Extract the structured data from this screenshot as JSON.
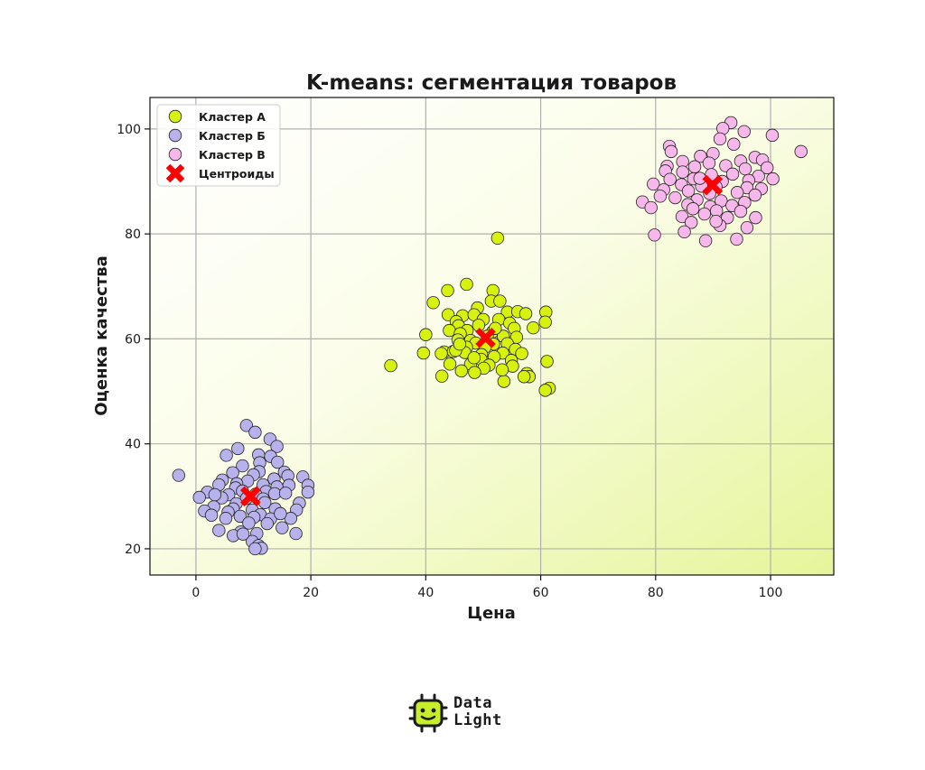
{
  "chart_data": {
    "type": "scatter",
    "title": "K-means: сегментация товаров",
    "xlabel": "Цена",
    "ylabel": "Оценка качества",
    "xlim": [
      -8,
      111
    ],
    "ylim": [
      15,
      106
    ],
    "xticks": [
      0,
      20,
      40,
      60,
      80,
      100
    ],
    "yticks": [
      20,
      40,
      60,
      80,
      100
    ],
    "grid": true,
    "legend_position": "top-left",
    "colors": {
      "cluster_a": "#d8f20f",
      "cluster_b": "#b7b1ec",
      "cluster_v": "#f8b7ea",
      "centroids": "#ff0000",
      "marker_edge": "#222222",
      "background_start": "#ffffff",
      "background_end": "#e6f59a"
    },
    "series": [
      {
        "name": "Кластер А",
        "color": "#d8f20f",
        "points": [
          [
            52.5,
            79.2
          ],
          [
            47.1,
            70.4
          ],
          [
            43.8,
            69.2
          ],
          [
            51.7,
            69.2
          ],
          [
            51.4,
            67.2
          ],
          [
            52.9,
            67.2
          ],
          [
            41.3,
            66.9
          ],
          [
            49.0,
            65.9
          ],
          [
            54.2,
            65.1
          ],
          [
            56.0,
            65.2
          ],
          [
            60.9,
            65.1
          ],
          [
            46.4,
            64.4
          ],
          [
            48.4,
            64.6
          ],
          [
            57.4,
            64.8
          ],
          [
            43.9,
            64.6
          ],
          [
            50.0,
            63.7
          ],
          [
            52.7,
            63.7
          ],
          [
            45.3,
            63.3
          ],
          [
            54.6,
            63.0
          ],
          [
            60.8,
            63.2
          ],
          [
            45.7,
            62.5
          ],
          [
            55.4,
            62.0
          ],
          [
            58.7,
            62.1
          ],
          [
            47.2,
            61.6
          ],
          [
            51.6,
            61.3
          ],
          [
            44.1,
            61.6
          ],
          [
            46.0,
            61.0
          ],
          [
            50.7,
            60.5
          ],
          [
            53.5,
            60.5
          ],
          [
            55.8,
            60.3
          ],
          [
            47.8,
            59.7
          ],
          [
            40.0,
            60.8
          ],
          [
            45.6,
            59.8
          ],
          [
            48.7,
            59.2
          ],
          [
            54.2,
            59.1
          ],
          [
            51.8,
            59.0
          ],
          [
            47.1,
            58.4
          ],
          [
            50.3,
            58.4
          ],
          [
            55.6,
            58.0
          ],
          [
            43.2,
            57.5
          ],
          [
            44.8,
            57.6
          ],
          [
            46.8,
            57.4
          ],
          [
            53.4,
            57.3
          ],
          [
            49.7,
            57.0
          ],
          [
            56.7,
            57.2
          ],
          [
            39.6,
            57.3
          ],
          [
            42.7,
            57.2
          ],
          [
            51.9,
            56.6
          ],
          [
            49.6,
            56.1
          ],
          [
            54.9,
            55.9
          ],
          [
            44.2,
            55.2
          ],
          [
            47.8,
            55.2
          ],
          [
            51.0,
            55.0
          ],
          [
            50.1,
            54.4
          ],
          [
            55.1,
            54.8
          ],
          [
            33.9,
            54.9
          ],
          [
            46.2,
            53.9
          ],
          [
            48.5,
            53.6
          ],
          [
            57.6,
            53.4
          ],
          [
            58.0,
            52.8
          ],
          [
            42.8,
            52.9
          ],
          [
            53.6,
            51.9
          ],
          [
            61.5,
            50.6
          ],
          [
            60.8,
            50.2
          ],
          [
            61.1,
            55.7
          ],
          [
            57.1,
            52.8
          ],
          [
            45.2,
            57.8
          ],
          [
            49.2,
            62.6
          ],
          [
            52.1,
            62.0
          ],
          [
            48.4,
            56.4
          ],
          [
            45.9,
            59.0
          ],
          [
            53.3,
            54.1
          ]
        ]
      },
      {
        "name": "Кластер Б",
        "color": "#b7b1ec",
        "points": [
          [
            8.8,
            43.5
          ],
          [
            10.3,
            42.2
          ],
          [
            12.9,
            40.9
          ],
          [
            14.1,
            39.5
          ],
          [
            7.3,
            39.1
          ],
          [
            5.3,
            37.8
          ],
          [
            10.9,
            37.9
          ],
          [
            13.0,
            37.6
          ],
          [
            11.1,
            36.4
          ],
          [
            14.2,
            36.5
          ],
          [
            8.1,
            35.8
          ],
          [
            11.0,
            34.7
          ],
          [
            15.4,
            34.6
          ],
          [
            6.4,
            34.5
          ],
          [
            10.0,
            34.1
          ],
          [
            16.0,
            33.9
          ],
          [
            18.6,
            33.7
          ],
          [
            -3.0,
            34.0
          ],
          [
            4.6,
            33.1
          ],
          [
            9.0,
            32.9
          ],
          [
            13.6,
            33.3
          ],
          [
            7.1,
            32.4
          ],
          [
            11.7,
            32.2
          ],
          [
            19.5,
            32.1
          ],
          [
            4.0,
            32.2
          ],
          [
            6.9,
            31.6
          ],
          [
            14.1,
            31.8
          ],
          [
            16.2,
            32.1
          ],
          [
            8.1,
            31.0
          ],
          [
            12.2,
            30.9
          ],
          [
            2.0,
            30.8
          ],
          [
            5.7,
            30.3
          ],
          [
            10.4,
            30.4
          ],
          [
            13.7,
            30.5
          ],
          [
            19.5,
            30.8
          ],
          [
            0.6,
            29.8
          ],
          [
            4.5,
            29.7
          ],
          [
            8.8,
            29.6
          ],
          [
            11.7,
            29.5
          ],
          [
            7.0,
            28.6
          ],
          [
            12.0,
            28.8
          ],
          [
            18.0,
            28.7
          ],
          [
            3.1,
            28.0
          ],
          [
            6.5,
            27.6
          ],
          [
            9.8,
            27.4
          ],
          [
            13.8,
            27.6
          ],
          [
            17.5,
            27.4
          ],
          [
            1.5,
            27.2
          ],
          [
            5.6,
            27.0
          ],
          [
            11.2,
            26.5
          ],
          [
            2.7,
            26.4
          ],
          [
            7.7,
            26.2
          ],
          [
            10.1,
            26.0
          ],
          [
            13.0,
            25.7
          ],
          [
            16.5,
            25.8
          ],
          [
            5.2,
            25.8
          ],
          [
            9.2,
            24.9
          ],
          [
            12.4,
            24.8
          ],
          [
            15.0,
            24.0
          ],
          [
            4.0,
            23.5
          ],
          [
            7.8,
            23.2
          ],
          [
            10.6,
            22.9
          ],
          [
            17.4,
            22.9
          ],
          [
            6.5,
            22.5
          ],
          [
            9.8,
            21.4
          ],
          [
            10.9,
            20.6
          ],
          [
            11.4,
            20.1
          ],
          [
            10.3,
            20.0
          ],
          [
            8.2,
            22.8
          ],
          [
            14.7,
            26.7
          ],
          [
            3.3,
            30.3
          ],
          [
            15.6,
            30.6
          ]
        ]
      },
      {
        "name": "Кластер В",
        "color": "#f8b7ea",
        "points": [
          [
            93.1,
            101.2
          ],
          [
            91.7,
            100.1
          ],
          [
            95.4,
            99.5
          ],
          [
            100.3,
            98.8
          ],
          [
            91.2,
            98.1
          ],
          [
            93.6,
            97.1
          ],
          [
            82.4,
            96.7
          ],
          [
            82.7,
            95.7
          ],
          [
            90.0,
            95.3
          ],
          [
            105.3,
            95.7
          ],
          [
            87.8,
            94.8
          ],
          [
            97.3,
            94.6
          ],
          [
            98.6,
            94.1
          ],
          [
            84.7,
            93.8
          ],
          [
            89.3,
            93.5
          ],
          [
            94.8,
            93.9
          ],
          [
            82.0,
            92.9
          ],
          [
            86.8,
            92.8
          ],
          [
            92.2,
            93.0
          ],
          [
            95.6,
            92.4
          ],
          [
            99.4,
            92.6
          ],
          [
            81.7,
            92.0
          ],
          [
            84.7,
            91.8
          ],
          [
            89.7,
            91.3
          ],
          [
            93.4,
            91.4
          ],
          [
            97.9,
            91.0
          ],
          [
            82.5,
            90.4
          ],
          [
            86.6,
            90.5
          ],
          [
            91.6,
            90.0
          ],
          [
            96.2,
            90.2
          ],
          [
            100.4,
            90.5
          ],
          [
            79.6,
            89.5
          ],
          [
            84.5,
            89.4
          ],
          [
            88.0,
            89.1
          ],
          [
            90.5,
            89.0
          ],
          [
            95.9,
            88.8
          ],
          [
            98.4,
            88.6
          ],
          [
            81.4,
            88.4
          ],
          [
            85.7,
            88.2
          ],
          [
            89.4,
            87.7
          ],
          [
            94.2,
            87.9
          ],
          [
            97.3,
            87.4
          ],
          [
            80.8,
            87.2
          ],
          [
            83.4,
            86.9
          ],
          [
            87.2,
            86.5
          ],
          [
            91.4,
            86.3
          ],
          [
            95.5,
            86.0
          ],
          [
            77.7,
            86.1
          ],
          [
            85.6,
            85.6
          ],
          [
            89.5,
            85.2
          ],
          [
            93.3,
            85.4
          ],
          [
            79.2,
            85.0
          ],
          [
            86.5,
            84.8
          ],
          [
            90.6,
            84.4
          ],
          [
            94.8,
            84.3
          ],
          [
            84.6,
            83.3
          ],
          [
            88.5,
            83.8
          ],
          [
            92.5,
            83.1
          ],
          [
            97.4,
            83.1
          ],
          [
            86.2,
            82.2
          ],
          [
            91.2,
            81.6
          ],
          [
            95.9,
            81.2
          ],
          [
            85.0,
            80.4
          ],
          [
            79.8,
            79.8
          ],
          [
            94.1,
            79.0
          ],
          [
            88.7,
            78.7
          ],
          [
            90.5,
            82.4
          ],
          [
            87.7,
            90.6
          ]
        ]
      },
      {
        "name": "Центроиды",
        "color": "#ff0000",
        "marker": "X",
        "points": [
          [
            50.4,
            60.2
          ],
          [
            9.5,
            30.0
          ],
          [
            89.9,
            89.3
          ]
        ]
      }
    ]
  },
  "logo": {
    "line1": "Data",
    "line2": "Light",
    "icon": "robot-chip-icon",
    "icon_color": "#c6ef2a"
  }
}
